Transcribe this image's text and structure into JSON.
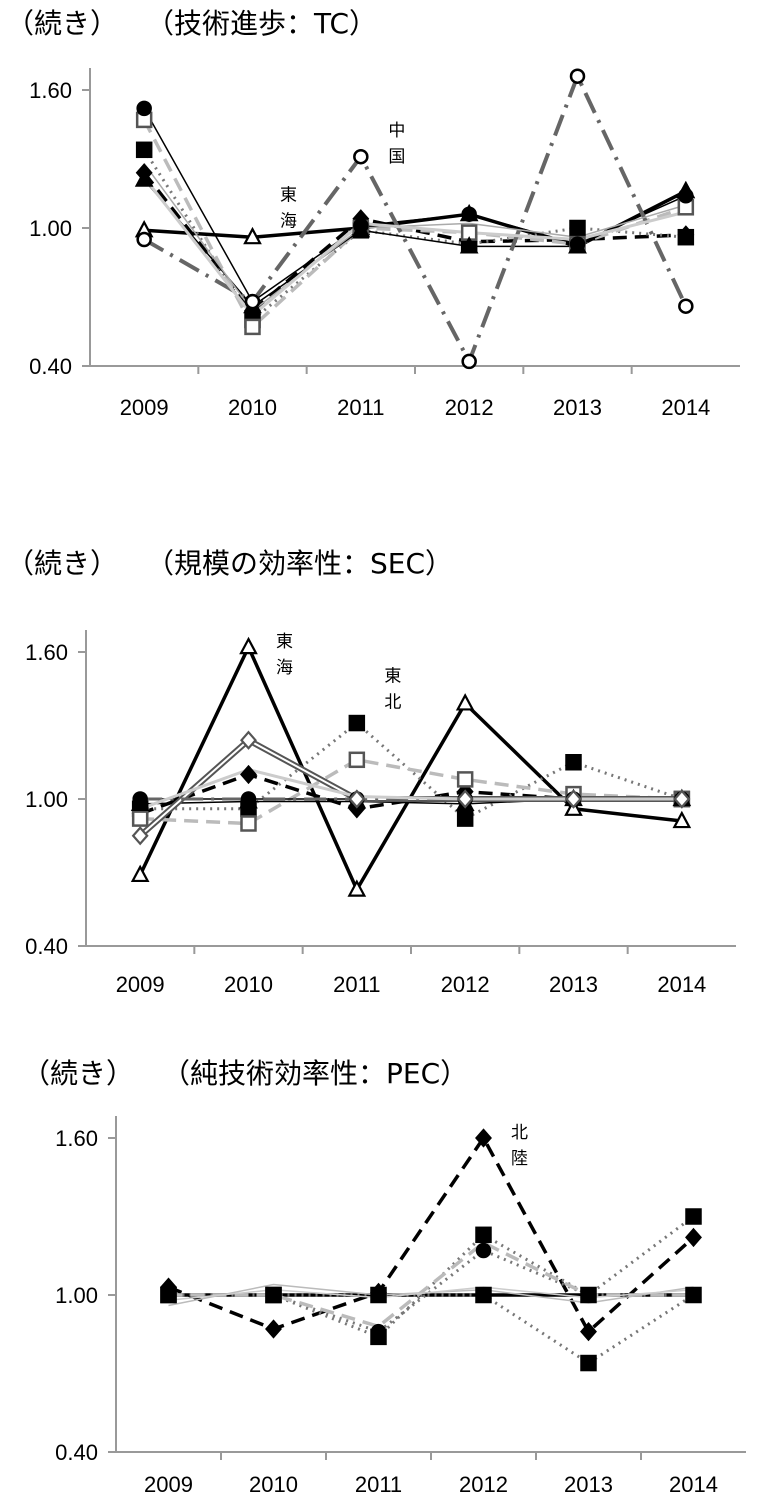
{
  "chart_data": [
    {
      "type": "line",
      "title": "（続き）　　（技術進歩：TC）",
      "categories": [
        "2009",
        "2010",
        "2011",
        "2012",
        "2013",
        "2014"
      ],
      "ylim": [
        0.4,
        1.6
      ],
      "yticks": [
        "1.60",
        "1.00",
        "0.40"
      ],
      "annotations": [
        {
          "text": [
            "東",
            "海"
          ],
          "x": "2010",
          "y": 1.12
        },
        {
          "text": [
            "中",
            "国"
          ],
          "x": "2011",
          "y": 1.4
        }
      ],
      "series": [
        {
          "values": [
            0.99,
            0.96,
            1.0,
            1.06,
            0.92,
            1.16
          ],
          "color": "#000000",
          "dash": "solid",
          "width": 3.5,
          "marker": "triangle-open"
        },
        {
          "values": [
            1.24,
            0.64,
            1.04,
            0.94,
            0.95,
            0.97
          ],
          "color": "#000000",
          "dash": "dashed",
          "width": 3.5,
          "marker": "diamond-filled"
        },
        {
          "values": [
            1.34,
            0.6,
            0.99,
            0.93,
            1.0,
            0.96
          ],
          "color": "#777777",
          "dash": "dotted",
          "width": 3,
          "marker": "square-filled"
        },
        {
          "values": [
            1.47,
            0.57,
            1.0,
            0.98,
            0.93,
            1.09
          ],
          "color": "#bbbbbb",
          "dash": "dashed",
          "width": 3.5,
          "marker": "square-open"
        },
        {
          "values": [
            1.52,
            0.68,
            1.01,
            1.06,
            0.93,
            1.14
          ],
          "color": "#000000",
          "dash": "solid",
          "width": 1.5,
          "marker": "circle-filled"
        },
        {
          "values": [
            1.21,
            0.66,
            0.99,
            0.92,
            0.92,
            1.16
          ],
          "color": "#000000",
          "dash": "solid",
          "width": 1.5,
          "marker": "triangle-filled"
        },
        {
          "values": [
            0.95,
            0.68,
            1.31,
            0.42,
            1.66,
            0.66
          ],
          "color": "#666666",
          "dash": "dashdot",
          "width": 4,
          "marker": "circle-open"
        },
        {
          "values": [
            1.28,
            0.64,
            1.0,
            1.02,
            0.96,
            1.1
          ],
          "color": "#aaaaaa",
          "dash": "solid",
          "width": 1.5,
          "marker": "none"
        },
        {
          "values": [
            1.22,
            0.62,
            1.02,
            0.98,
            0.95,
            1.07
          ],
          "color": "#cccccc",
          "dash": "solid",
          "width": 3,
          "marker": "none"
        }
      ]
    },
    {
      "type": "line",
      "title": "（続き）　　（規模の効率性：SEC）",
      "categories": [
        "2009",
        "2010",
        "2011",
        "2012",
        "2013",
        "2014"
      ],
      "ylim": [
        0.4,
        1.6
      ],
      "yticks": [
        "1.60",
        "1.00",
        "0.40"
      ],
      "annotations": [
        {
          "text": [
            "東",
            "海"
          ],
          "x": "2010",
          "y": 1.62
        },
        {
          "text": [
            "東",
            "北"
          ],
          "x": "2011",
          "y": 1.48
        }
      ],
      "series": [
        {
          "values": [
            0.69,
            1.62,
            0.63,
            1.39,
            0.96,
            0.91
          ],
          "color": "#000000",
          "dash": "solid",
          "width": 3.5,
          "marker": "triangle-open"
        },
        {
          "values": [
            0.94,
            1.1,
            0.96,
            1.03,
            1.0,
            1.0
          ],
          "color": "#000000",
          "dash": "dashed",
          "width": 3.5,
          "marker": "diamond-filled"
        },
        {
          "values": [
            0.96,
            0.96,
            1.31,
            0.92,
            1.15,
            1.0
          ],
          "color": "#777777",
          "dash": "dotted",
          "width": 3,
          "marker": "square-filled"
        },
        {
          "values": [
            0.92,
            0.9,
            1.16,
            1.08,
            1.02,
            1.0
          ],
          "color": "#bbbbbb",
          "dash": "dashed",
          "width": 3.5,
          "marker": "square-open"
        },
        {
          "values": [
            1.0,
            1.0,
            1.0,
            1.0,
            1.0,
            1.0
          ],
          "color": "#000000",
          "dash": "solid",
          "width": 1.5,
          "marker": "circle-filled"
        },
        {
          "values": [
            0.98,
            0.99,
            0.99,
            0.98,
            1.0,
            1.0
          ],
          "color": "#000000",
          "dash": "solid",
          "width": 1.5,
          "marker": "triangle-filled"
        },
        {
          "values": [
            0.85,
            1.24,
            1.0,
            1.0,
            1.0,
            1.0
          ],
          "color": "#555555",
          "dash": "double",
          "width": 2,
          "marker": "diamond-open"
        },
        {
          "values": [
            1.0,
            1.0,
            1.0,
            1.0,
            1.0,
            1.0
          ],
          "color": "#666666",
          "dash": "dashdot",
          "width": 3,
          "marker": "none"
        },
        {
          "values": [
            0.96,
            1.12,
            1.01,
            1.0,
            1.0,
            1.0
          ],
          "color": "#cccccc",
          "dash": "solid",
          "width": 3,
          "marker": "none"
        }
      ]
    },
    {
      "type": "line",
      "title": "（続き）　　（純技術効率性：PEC）",
      "categories": [
        "2009",
        "2010",
        "2011",
        "2012",
        "2013",
        "2014"
      ],
      "ylim": [
        0.4,
        1.6
      ],
      "yticks": [
        "1.60",
        "1.00",
        "0.40"
      ],
      "annotations": [
        {
          "text": [
            "北",
            "陸"
          ],
          "x": "2012",
          "y": 1.6
        }
      ],
      "series": [
        {
          "values": [
            1.0,
            1.0,
            1.0,
            1.0,
            1.0,
            1.0
          ],
          "color": "#000000",
          "dash": "solid",
          "width": 3.5,
          "marker": "none"
        },
        {
          "values": [
            1.03,
            0.87,
            1.01,
            1.6,
            0.86,
            1.22
          ],
          "color": "#000000",
          "dash": "dashed",
          "width": 3.5,
          "marker": "diamond-filled"
        },
        {
          "values": [
            1.0,
            1.0,
            0.84,
            1.23,
            1.0,
            1.3
          ],
          "color": "#777777",
          "dash": "dotted",
          "width": 3,
          "marker": "square-filled"
        },
        {
          "values": [
            1.0,
            1.0,
            0.86,
            1.17,
            1.0,
            1.0
          ],
          "color": "#777777",
          "dash": "dotted",
          "width": 3,
          "marker": "circle-filled"
        },
        {
          "values": [
            1.0,
            1.0,
            1.0,
            1.0,
            0.74,
            1.0
          ],
          "color": "#777777",
          "dash": "dotted",
          "width": 3,
          "marker": "square-filled"
        },
        {
          "values": [
            1.0,
            1.0,
            0.88,
            1.2,
            1.0,
            1.0
          ],
          "color": "#bbbbbb",
          "dash": "dashed",
          "width": 3.5,
          "marker": "none"
        },
        {
          "values": [
            0.96,
            1.04,
            1.0,
            1.02,
            0.97,
            1.03
          ],
          "color": "#bbbbbb",
          "dash": "solid",
          "width": 1.5,
          "marker": "none"
        },
        {
          "values": [
            0.98,
            1.02,
            0.99,
            1.03,
            0.99,
            1.02
          ],
          "color": "#cccccc",
          "dash": "solid",
          "width": 1.5,
          "marker": "none"
        }
      ]
    }
  ]
}
